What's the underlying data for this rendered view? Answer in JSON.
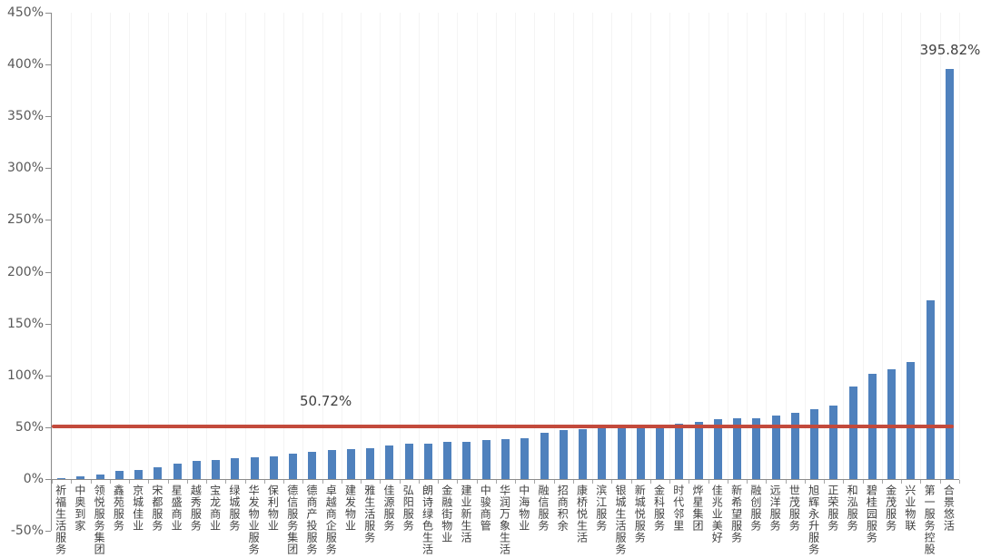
{
  "chart_data": {
    "type": "bar",
    "title": "",
    "xlabel": "",
    "ylabel": "",
    "legend": null,
    "grid": "none",
    "bar_color": "#4F81BD",
    "categories": [
      "祈福生活服务",
      "中奥到家",
      "领悦服务集团",
      "鑫苑服务",
      "京城佳业",
      "宋都服务",
      "星盛商业",
      "越秀服务",
      "宝龙商业",
      "绿城服务",
      "华发物业服务",
      "保利物业",
      "德信服务集团",
      "德商产投服务",
      "卓越商企服务",
      "建发物业",
      "雅生活服务",
      "佳源服务",
      "弘阳服务",
      "朗诗绿色生活",
      "金融街物业",
      "建业新生活",
      "中骏商管",
      "华润万象生活",
      "中海物业",
      "融信服务",
      "招商积余",
      "康桥悦生活",
      "滨江服务",
      "银城生活服务",
      "新城悦服务",
      "金科服务",
      "时代邻里",
      "烨星集团",
      "佳兆业美好",
      "新希望服务",
      "融创服务",
      "远洋服务",
      "世茂服务",
      "旭辉永升服务",
      "正荣服务",
      "和泓服务",
      "碧桂园服务",
      "金茂服务",
      "兴业物联",
      "第一服务控股",
      "合景悠活"
    ],
    "values": [
      0.5,
      2.5,
      4.5,
      8,
      9,
      11,
      15,
      17,
      18.5,
      20,
      20.5,
      22,
      24,
      26.5,
      28,
      28.5,
      30,
      32,
      34,
      34.5,
      35.5,
      36,
      37.5,
      38.5,
      39.5,
      45,
      47,
      48.5,
      49,
      49.5,
      50.5,
      51.5,
      53.5,
      55,
      57.5,
      58.5,
      59,
      61,
      63.5,
      67,
      71,
      89,
      101.5,
      105.5,
      113,
      172,
      395.82
    ],
    "value_unit": "%",
    "y_axis": {
      "min": -50,
      "max": 450,
      "step": 50,
      "tick_labels": [
        "450%",
        "400%",
        "350%",
        "300%",
        "250%",
        "200%",
        "150%",
        "100%",
        "50%",
        "0%",
        "-50%"
      ]
    },
    "reference_line": {
      "value": 50.72,
      "label": "50.72%",
      "color": "#C34A3C"
    },
    "annotation": {
      "category": "合景悠活",
      "value": 395.82,
      "label": "395.82%"
    }
  }
}
